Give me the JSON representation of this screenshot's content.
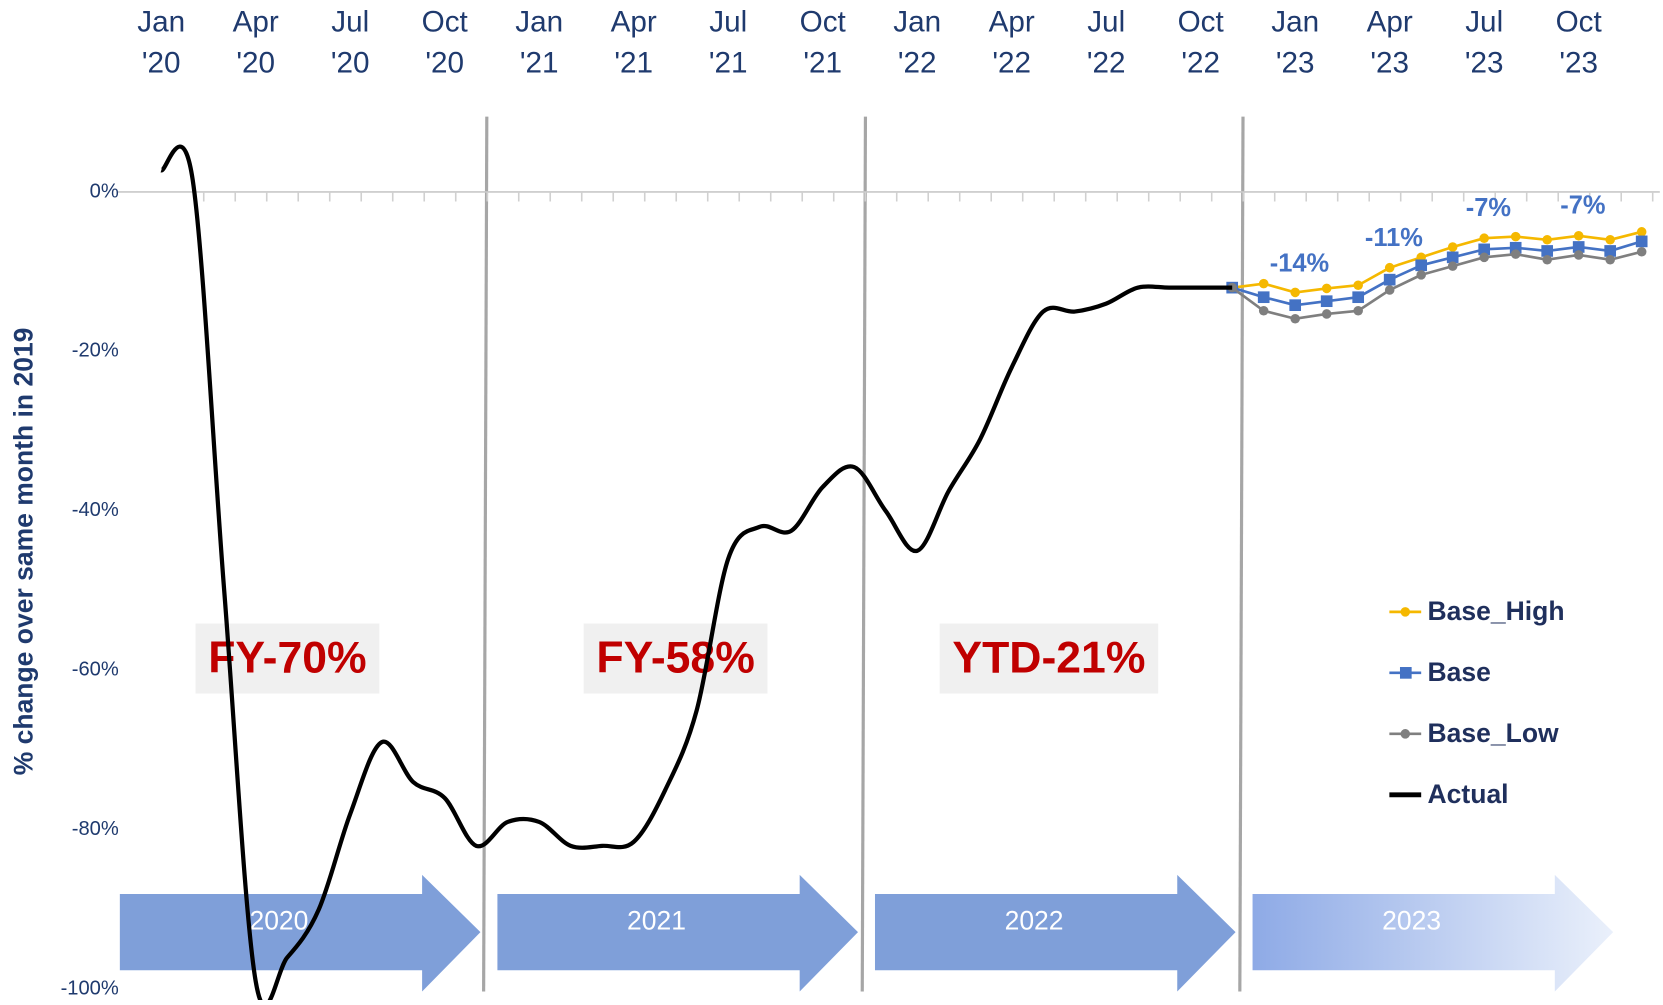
{
  "chart_data": {
    "type": "line",
    "ylabel": "% change over same month in 2019",
    "categories": [
      "Jan '20",
      null,
      null,
      "Apr '20",
      null,
      null,
      "Jul '20",
      null,
      null,
      "Oct '20",
      null,
      null,
      "Jan '21",
      null,
      null,
      "Apr '21",
      null,
      null,
      "Jul '21",
      null,
      null,
      "Oct '21",
      null,
      null,
      "Jan '22",
      null,
      null,
      "Apr '22",
      null,
      null,
      "Jul '22",
      null,
      null,
      "Oct '22",
      null,
      null,
      "Jan '23",
      null,
      null,
      "Apr '23",
      null,
      null,
      "Jul '23",
      null,
      null,
      "Oct '23",
      null,
      null
    ],
    "ylim": [
      -100,
      10
    ],
    "yticks": [
      {
        "value": 0,
        "label": "0%"
      },
      {
        "value": -20,
        "label": "-20%"
      },
      {
        "value": -40,
        "label": "-40%"
      },
      {
        "value": -60,
        "label": "-60%"
      },
      {
        "value": -80,
        "label": "-80%"
      },
      {
        "value": -100,
        "label": "-100%"
      }
    ],
    "series": [
      {
        "name": "Base_High",
        "color": "#f5b800",
        "marker": "circle",
        "values": [
          null,
          null,
          null,
          null,
          null,
          null,
          null,
          null,
          null,
          null,
          null,
          null,
          null,
          null,
          null,
          null,
          null,
          null,
          null,
          null,
          null,
          null,
          null,
          null,
          null,
          null,
          null,
          null,
          null,
          null,
          null,
          null,
          null,
          null,
          -12,
          -11.5,
          -12.6,
          -12.1,
          -11.7,
          -9.5,
          -8.2,
          -6.9,
          -5.8,
          -5.6,
          -6,
          -5.5,
          -6,
          -5
        ]
      },
      {
        "name": "Base",
        "color": "#4472c4",
        "marker": "square",
        "values": [
          null,
          null,
          null,
          null,
          null,
          null,
          null,
          null,
          null,
          null,
          null,
          null,
          null,
          null,
          null,
          null,
          null,
          null,
          null,
          null,
          null,
          null,
          null,
          null,
          null,
          null,
          null,
          null,
          null,
          null,
          null,
          null,
          null,
          null,
          -12,
          -13.2,
          -14.2,
          -13.7,
          -13.2,
          -11,
          -9.2,
          -8.2,
          -7.2,
          -7,
          -7.4,
          -6.9,
          -7.4,
          -6.2
        ],
        "value_labels": [
          null,
          null,
          null,
          null,
          null,
          null,
          null,
          null,
          null,
          null,
          null,
          null,
          null,
          null,
          null,
          null,
          null,
          null,
          null,
          null,
          null,
          null,
          null,
          null,
          null,
          null,
          null,
          null,
          null,
          null,
          null,
          null,
          null,
          null,
          null,
          null,
          "-14%",
          null,
          null,
          "-11%",
          null,
          null,
          "-7%",
          null,
          null,
          "-7%",
          null,
          null
        ]
      },
      {
        "name": "Base_Low",
        "color": "#7f7f7f",
        "marker": "circle",
        "values": [
          null,
          null,
          null,
          null,
          null,
          null,
          null,
          null,
          null,
          null,
          null,
          null,
          null,
          null,
          null,
          null,
          null,
          null,
          null,
          null,
          null,
          null,
          null,
          null,
          null,
          null,
          null,
          null,
          null,
          null,
          null,
          null,
          null,
          null,
          -12,
          -14.9,
          -15.9,
          -15.3,
          -14.9,
          -12.3,
          -10.4,
          -9.3,
          -8.2,
          -7.8,
          -8.5,
          -7.9,
          -8.5,
          -7.5
        ]
      },
      {
        "name": "Actual",
        "color": "#000000",
        "marker": "none",
        "values": [
          2.7,
          1.5,
          -50,
          -99,
          -96,
          -90,
          -78,
          -69,
          -74,
          -76,
          -82,
          -79,
          -79,
          -82,
          -82,
          -81.5,
          -75,
          -65,
          -46,
          -42,
          -42.5,
          -37,
          -34.5,
          -40,
          -45,
          -37.5,
          -31,
          -22,
          -15,
          -15,
          -14,
          -12,
          -12,
          -12,
          -12,
          null,
          null,
          null,
          null,
          null,
          null,
          null,
          null,
          null,
          null,
          null,
          null,
          null
        ]
      }
    ],
    "annotations": [
      "FY-70%",
      "FY-58%",
      "YTD-21%"
    ],
    "periods": [
      "2020",
      "2021",
      "2022",
      "2023"
    ]
  }
}
